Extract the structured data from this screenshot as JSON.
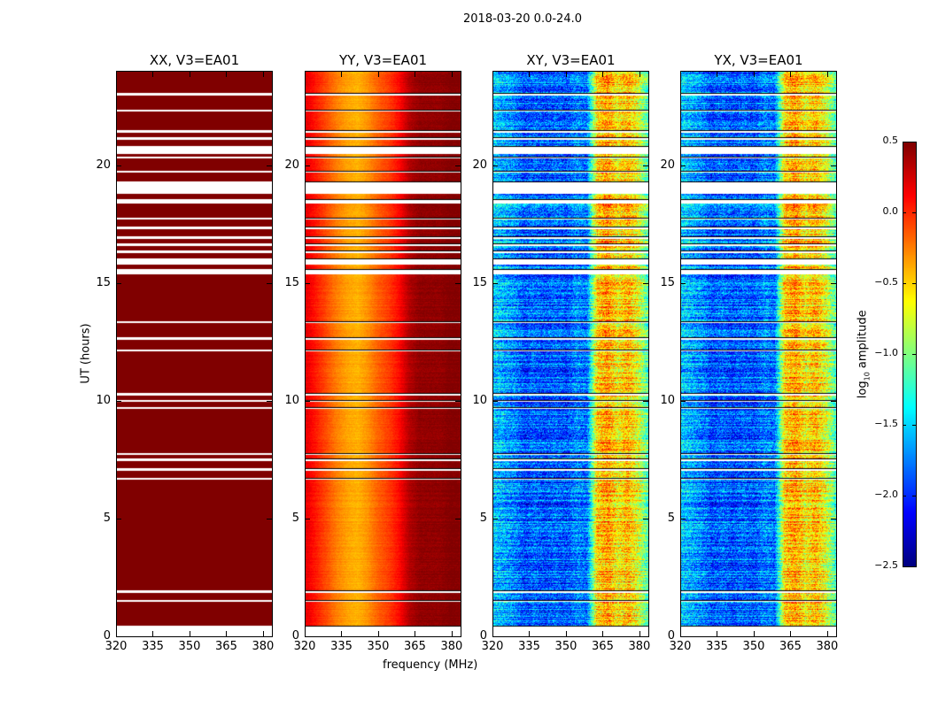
{
  "chart_data": {
    "type": "heatmap",
    "title": "2018-03-20 0.0-24.0",
    "xlabel": "frequency (MHz)",
    "ylabel": "UT (hours)",
    "xlim": [
      320,
      384
    ],
    "ylim": [
      0,
      24
    ],
    "xticks": [
      "320",
      "335",
      "350",
      "365",
      "380"
    ],
    "yticks": [
      "0",
      "5",
      "10",
      "15",
      "20"
    ],
    "colorbar": {
      "label": "log10 amplitude",
      "label_main": "log",
      "label_sub": "10",
      "label_rest": " amplitude",
      "range": [
        -2.5,
        0.5
      ],
      "ticks": [
        "0.5",
        "0.0",
        "−0.5",
        "−1.0",
        "−1.5",
        "−2.0",
        "−2.5"
      ],
      "colormap": "jet"
    },
    "flagged_hours": [
      [
        0,
        0.45
      ],
      [
        1.45,
        1.55
      ],
      [
        1.85,
        1.95
      ],
      [
        6.65,
        6.75
      ],
      [
        7.05,
        7.15
      ],
      [
        7.45,
        7.55
      ],
      [
        7.7,
        7.8
      ],
      [
        9.65,
        9.75
      ],
      [
        9.95,
        10.05
      ],
      [
        10.25,
        10.35
      ],
      [
        12.1,
        12.2
      ],
      [
        12.6,
        12.7
      ],
      [
        13.3,
        13.4
      ],
      [
        15.4,
        15.6
      ],
      [
        15.8,
        16.05
      ],
      [
        16.3,
        16.4
      ],
      [
        16.6,
        16.7
      ],
      [
        16.9,
        17.0
      ],
      [
        17.3,
        17.4
      ],
      [
        17.7,
        17.8
      ],
      [
        18.4,
        18.6
      ],
      [
        18.8,
        19.35
      ],
      [
        19.7,
        19.8
      ],
      [
        20.3,
        20.4
      ],
      [
        20.5,
        20.85
      ],
      [
        21.1,
        21.2
      ],
      [
        21.4,
        21.5
      ],
      [
        22.3,
        22.4
      ],
      [
        23.0,
        23.1
      ]
    ],
    "panels": [
      {
        "title": "XX, V3=EA01",
        "freq_profile_log10": [
          0.5,
          0.5,
          0.5,
          0.5,
          0.5,
          0.5,
          0.5,
          0.5,
          0.5,
          0.5,
          0.5,
          0.5,
          0.5,
          0.5,
          0.5,
          0.5
        ],
        "noise": 0.0
      },
      {
        "title": "YY, V3=EA01",
        "freq_profile_log10": [
          0.2,
          0.05,
          -0.1,
          -0.25,
          -0.35,
          -0.4,
          -0.3,
          -0.15,
          -0.05,
          0.1,
          0.35,
          0.45,
          0.45,
          0.45,
          0.5,
          0.5
        ],
        "noise": 0.05
      },
      {
        "title": "XY, V3=EA01",
        "freq_profile_log10": [
          -1.5,
          -1.6,
          -1.7,
          -1.9,
          -1.8,
          -1.9,
          -1.8,
          -1.9,
          -1.7,
          -1.8,
          -0.5,
          -0.3,
          -0.6,
          -0.4,
          -0.7,
          -1.2
        ],
        "noise": 0.35
      },
      {
        "title": "YX, V3=EA01",
        "freq_profile_log10": [
          -1.5,
          -1.6,
          -1.7,
          -1.9,
          -1.8,
          -1.9,
          -1.8,
          -1.9,
          -1.7,
          -1.8,
          -0.5,
          -0.3,
          -0.6,
          -0.4,
          -0.7,
          -1.2
        ],
        "noise": 0.35
      }
    ]
  }
}
